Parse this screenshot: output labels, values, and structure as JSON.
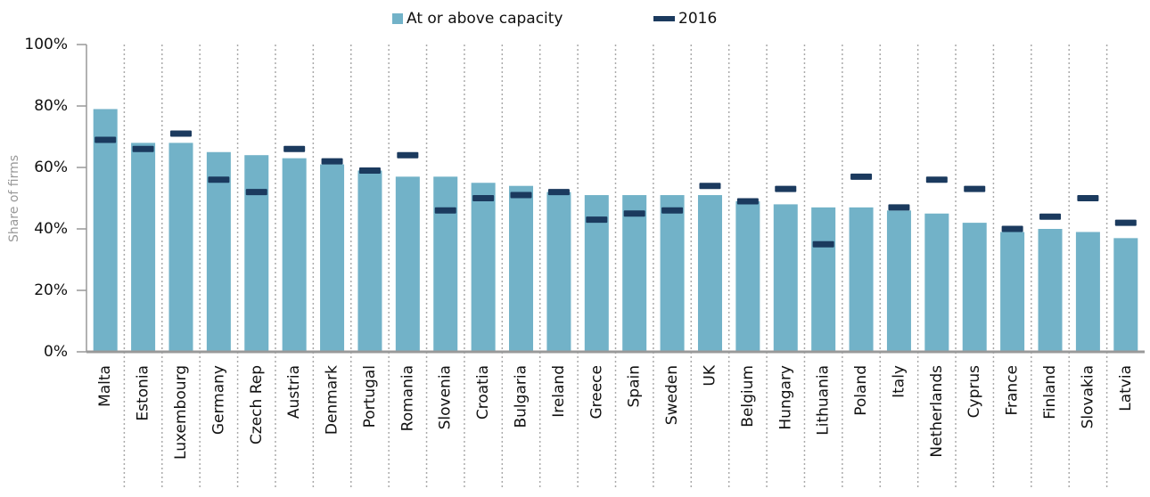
{
  "chart_data": {
    "type": "bar",
    "y_label": "Share of firms",
    "categories": [
      "Malta",
      "Estonia",
      "Luxembourg",
      "Germany",
      "Czech Rep",
      "Austria",
      "Denmark",
      "Portugal",
      "Romania",
      "Slovenia",
      "Croatia",
      "Bulgaria",
      "Ireland",
      "Greece",
      "Spain",
      "Sweden",
      "UK",
      "Belgium",
      "Hungary",
      "Lithuania",
      "Poland",
      "Italy",
      "Netherlands",
      "Cyprus",
      "France",
      "Finland",
      "Slovakia",
      "Latvia"
    ],
    "series": [
      {
        "name": "At or above capacity",
        "color": "#72b2c8",
        "style": "bar",
        "values": [
          79,
          68,
          68,
          65,
          64,
          63,
          61,
          59,
          57,
          57,
          55,
          54,
          52,
          51,
          51,
          51,
          51,
          49,
          48,
          47,
          47,
          46,
          45,
          42,
          39,
          40,
          39,
          37
        ]
      },
      {
        "name": "2016",
        "color": "#1b3a5e",
        "style": "dash",
        "values": [
          69,
          66,
          71,
          56,
          52,
          66,
          62,
          59,
          64,
          46,
          50,
          51,
          52,
          43,
          45,
          46,
          54,
          49,
          53,
          35,
          57,
          47,
          56,
          53,
          40,
          44,
          50,
          42
        ]
      }
    ],
    "ylim": [
      0,
      100
    ],
    "yticks": [
      {
        "value": 0,
        "label": "0%"
      },
      {
        "value": 20,
        "label": "20%"
      },
      {
        "value": 40,
        "label": "40%"
      },
      {
        "value": 60,
        "label": "60%"
      },
      {
        "value": 80,
        "label": "80%"
      },
      {
        "value": 100,
        "label": "100%"
      }
    ],
    "legend": "top"
  }
}
